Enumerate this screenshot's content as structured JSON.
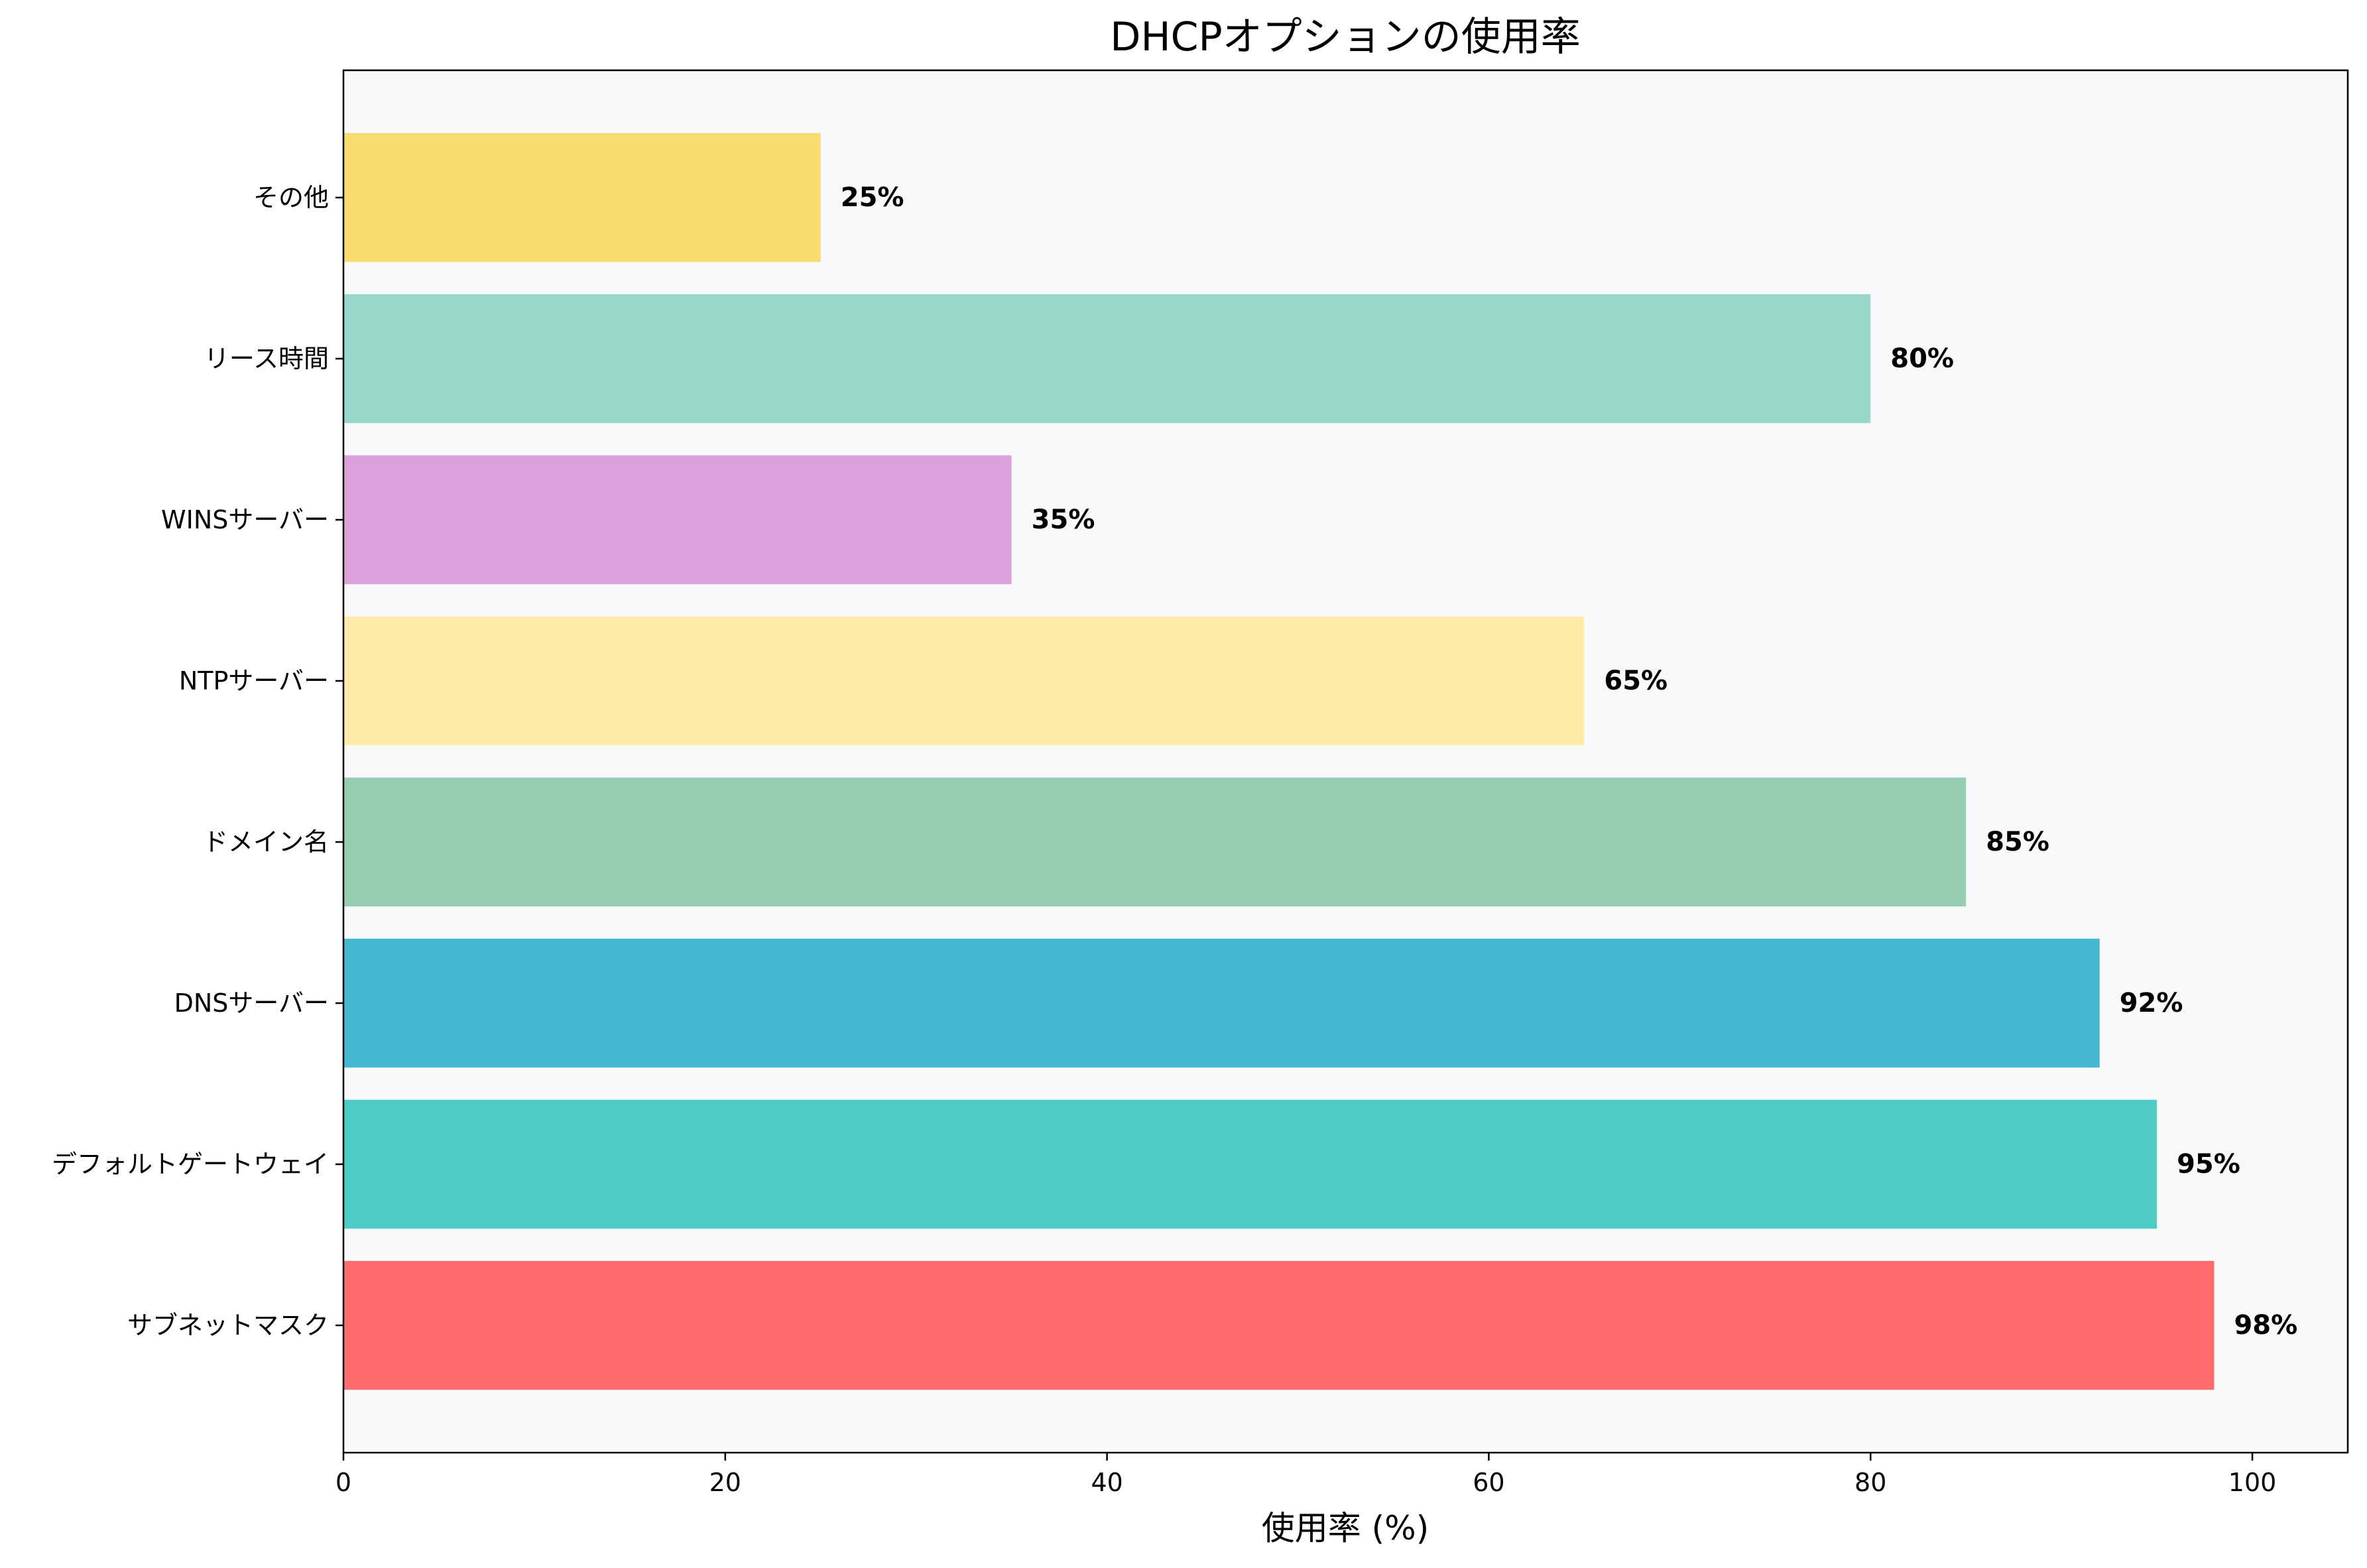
{
  "chart_data": {
    "type": "bar",
    "orientation": "horizontal",
    "title": "DHCPオプションの使用率",
    "xlabel": "使用率 (%)",
    "ylabel": "",
    "xlim": [
      0,
      105
    ],
    "x_ticks": [
      0,
      20,
      40,
      60,
      80,
      100
    ],
    "categories": [
      "サブネットマスク",
      "デフォルトゲートウェイ",
      "DNSサーバー",
      "ドメイン名",
      "NTPサーバー",
      "WINSサーバー",
      "リース時間",
      "その他"
    ],
    "values": [
      98,
      95,
      92,
      85,
      65,
      35,
      80,
      25
    ],
    "data_labels": [
      "98%",
      "95%",
      "92%",
      "85%",
      "65%",
      "35%",
      "80%",
      "25%"
    ],
    "colors": [
      "#ff6b6b",
      "#4ecdc4",
      "#45b7d1",
      "#96ceb4",
      "#ffeaa7",
      "#dda0dd",
      "#98d8c8",
      "#f7dc6f"
    ],
    "plot_background": "#f8f9fa",
    "grid": false,
    "legend": "none"
  }
}
